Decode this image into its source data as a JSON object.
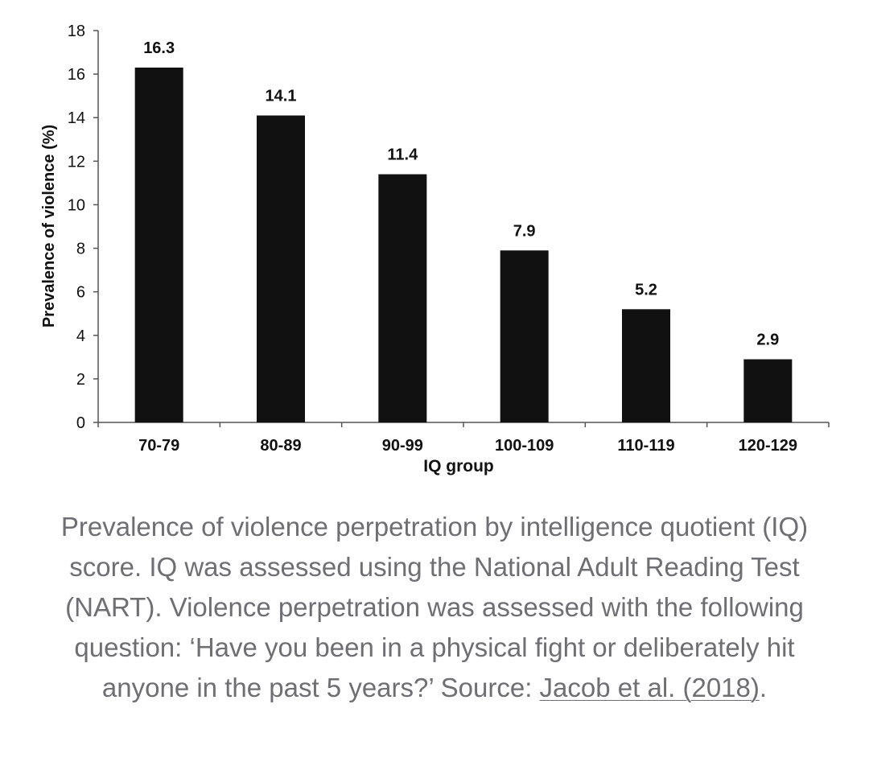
{
  "chart_data": {
    "type": "bar",
    "categories": [
      "70-79",
      "80-89",
      "90-99",
      "100-109",
      "110-119",
      "120-129"
    ],
    "values": [
      16.3,
      14.1,
      11.4,
      7.9,
      5.2,
      2.9
    ],
    "value_labels": [
      "16.3",
      "14.1",
      "11.4",
      "7.9",
      "5.2",
      "2.9"
    ],
    "title": "",
    "xlabel": "IQ group",
    "ylabel": "Prevalence of violence (%)",
    "ylim": [
      0,
      18
    ],
    "yticks": [
      0,
      2,
      4,
      6,
      8,
      10,
      12,
      14,
      16,
      18
    ],
    "grid": false,
    "bar_color": "#111111",
    "axis_color": "#555555"
  },
  "caption": {
    "text": "Prevalence of violence perpetration by intelligence quotient (IQ) score. IQ was assessed using the National Adult Reading Test (NART). Violence perpetration was assessed with the following question: ‘Have you been in a physical fight or deliberately hit anyone in the past 5 years?’ Source: ",
    "link_text": "Jacob et al. (2018)",
    "end": "."
  }
}
